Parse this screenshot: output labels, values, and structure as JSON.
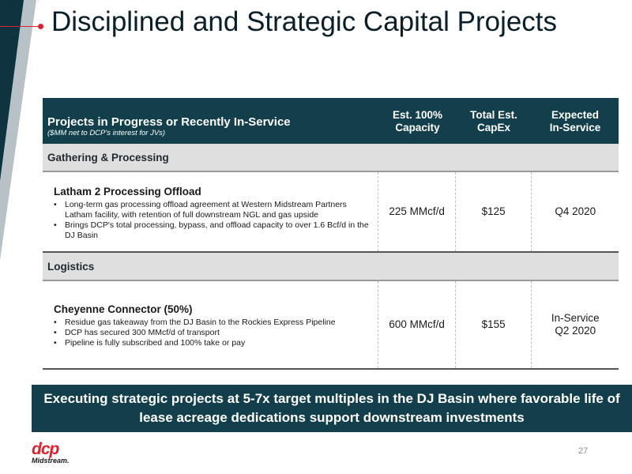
{
  "slide": {
    "title": "Disciplined and Strategic Capital Projects",
    "page_number": "27",
    "colors": {
      "navy": "#123f4b",
      "teal": "#2b5c6b",
      "accent_red": "#d9232e",
      "section_gray": "#dfdfdf"
    }
  },
  "table": {
    "header": {
      "title": "Projects in Progress or Recently In-Service",
      "subtitle": "($MM net to DCP's interest for JVs)",
      "col_capacity_line1": "Est. 100%",
      "col_capacity_line2": "Capacity",
      "col_capex_line1": "Total Est.",
      "col_capex_line2": "CapEx",
      "col_inservice_line1": "Expected",
      "col_inservice_line2": "In-Service"
    },
    "sections": [
      {
        "label": "Gathering & Processing",
        "project": {
          "name": "Latham 2 Processing Offload",
          "bullets": [
            "Long-term gas processing offload agreement at Western Midstream Partners Latham facility, with retention of full downstream NGL and gas upside",
            "Brings DCP's total processing, bypass, and offload capacity to over 1.6 Bcf/d in the DJ Basin"
          ],
          "capacity": "225 MMcf/d",
          "capex": "$125",
          "in_service_line1": "Q4 2020",
          "in_service_line2": ""
        }
      },
      {
        "label": "Logistics",
        "project": {
          "name": "Cheyenne Connector (50%)",
          "bullets": [
            "Residue gas takeaway from the DJ Basin to the Rockies Express Pipeline",
            "DCP has secured 300 MMcf/d of transport",
            "Pipeline is fully subscribed and 100% take or pay"
          ],
          "capacity": "600 MMcf/d",
          "capex": "$155",
          "in_service_line1": "In-Service",
          "in_service_line2": "Q2 2020"
        }
      }
    ]
  },
  "banner": {
    "text": "Executing strategic projects at 5-7x target multiples in the DJ Basin where favorable life of lease acreage dedications support downstream investments"
  },
  "logo": {
    "word": "dcp",
    "sub": "Midstream."
  }
}
